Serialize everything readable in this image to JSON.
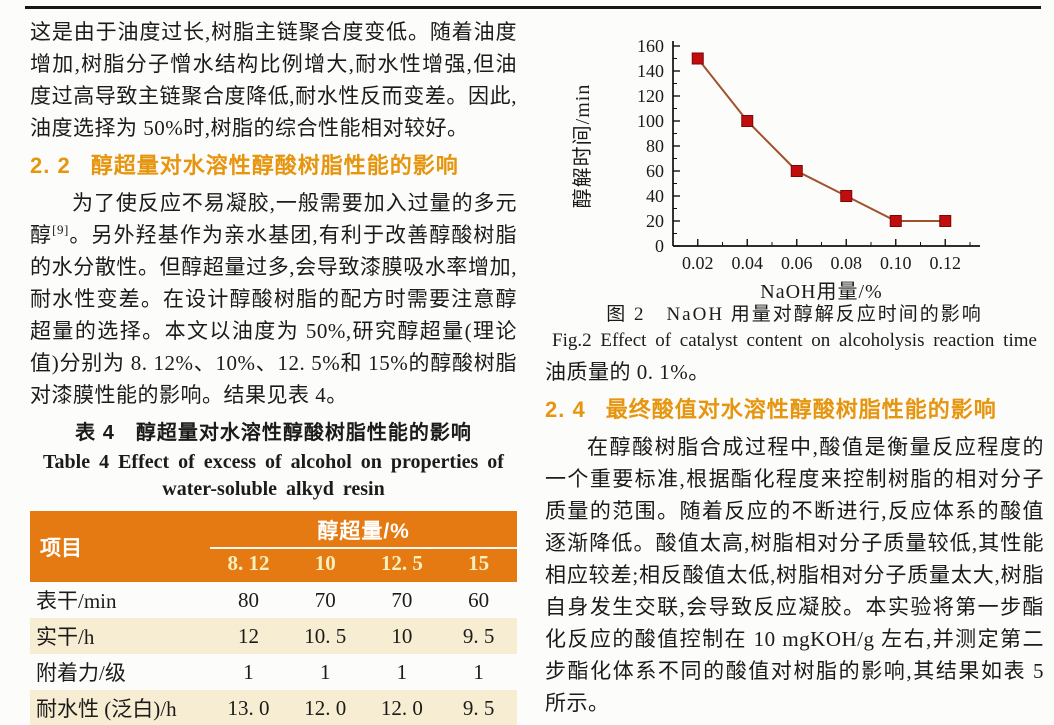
{
  "left_column": {
    "para1": "这是由于油度过长,树脂主链聚合度变低。随着油度增加,树脂分子憎水结构比例增大,耐水性增强,但油度过高导致主链聚合度降低,耐水性反而变差。因此,油度选择为 50%时,树脂的综合性能相对较好。",
    "heading_2_2": {
      "number": "2. 2",
      "title": "醇超量对水溶性醇酸树脂性能的影响"
    },
    "para2_before_ref": "为了使反应不易凝胶,一般需要加入过量的多元醇",
    "para2_ref": "[9]",
    "para2_after_ref": "。另外羟基作为亲水基团,有利于改善醇酸树脂的水分散性。但醇超量过多,会导致漆膜吸水率增加,耐水性变差。在设计醇酸树脂的配方时需要注意醇超量的选择。本文以油度为 50%,研究醇超量(理论值)分别为 8. 12%、10%、12. 5%和 15%的醇酸树脂对漆膜性能的影响。结果见表 4。",
    "table4": {
      "caption_zh": "表 4　醇超量对水溶性醇酸树脂性能的影响",
      "caption_en_line1": "Table 4   Effect of excess of alcohol on properties of",
      "caption_en_line2": "water-soluble alkyd resin",
      "header_item": "项目",
      "header_group": "醇超量/%",
      "header_cols": [
        "8. 12",
        "10",
        "12. 5",
        "15"
      ],
      "rows": [
        {
          "label": "表干/min",
          "values": [
            "80",
            "70",
            "70",
            "60"
          ]
        },
        {
          "label": "实干/h",
          "values": [
            "12",
            "10. 5",
            "10",
            "9. 5"
          ]
        },
        {
          "label": "附着力/级",
          "values": [
            "1",
            "1",
            "1",
            "1"
          ]
        },
        {
          "label": "耐水性 (泛白)/h",
          "values": [
            "13. 0",
            "12. 0",
            "12. 0",
            "9. 5"
          ]
        }
      ]
    }
  },
  "right_column": {
    "fig_caption_zh": "图 2　NaOH 用量对醇解反应时间的影响",
    "fig_caption_en": "Fig.2   Effect of catalyst content on alcoholysis reaction time",
    "para_continuation": "油质量的 0. 1%。",
    "heading_2_4": {
      "number": "2. 4",
      "title": "最终酸值对水溶性醇酸树脂性能的影响"
    },
    "para": "在醇酸树脂合成过程中,酸值是衡量反应程度的一个重要标准,根据酯化程度来控制树脂的相对分子质量的范围。随着反应的不断进行,反应体系的酸值逐渐降低。酸值太高,树脂相对分子质量较低,其性能相应较差;相反酸值太低,树脂相对分子质量太大,树脂自身发生交联,会导致反应凝胶。本实验将第一步酯化反应的酸值控制在 10 mgKOH/g 左右,并测定第二步酯化体系不同的酸值对树脂的影响,其结果如表 5 所示。"
  },
  "chart_data": {
    "type": "line",
    "x": [
      0.02,
      0.04,
      0.06,
      0.08,
      0.1,
      0.12
    ],
    "y": [
      150,
      100,
      60,
      40,
      20,
      20
    ],
    "xlabel": "NaOH用量/%",
    "ylabel": "醇解时间/min",
    "xlim": [
      0.01,
      0.13
    ],
    "ylim": [
      0,
      160
    ],
    "xticks": [
      0.02,
      0.04,
      0.06,
      0.08,
      0.1,
      0.12
    ],
    "yticks": [
      0,
      20,
      40,
      60,
      80,
      100,
      120,
      140,
      160
    ],
    "x_minor_step": 0.01,
    "y_minor_step": 10,
    "grid": false,
    "legend": null,
    "marker": "square",
    "title": ""
  },
  "colors": {
    "heading_orange": "#e6950f",
    "table_header_bg": "#e67a12",
    "table_header_values_text": "#f7efbe",
    "table_alt_row_bg": "#f7edd2",
    "table_bottom_border": "#e09a18",
    "chart_line": "#a0522d",
    "chart_marker_fill": "#c00d0d",
    "chart_marker_edge": "#7d0606",
    "axis_color": "#111111"
  }
}
